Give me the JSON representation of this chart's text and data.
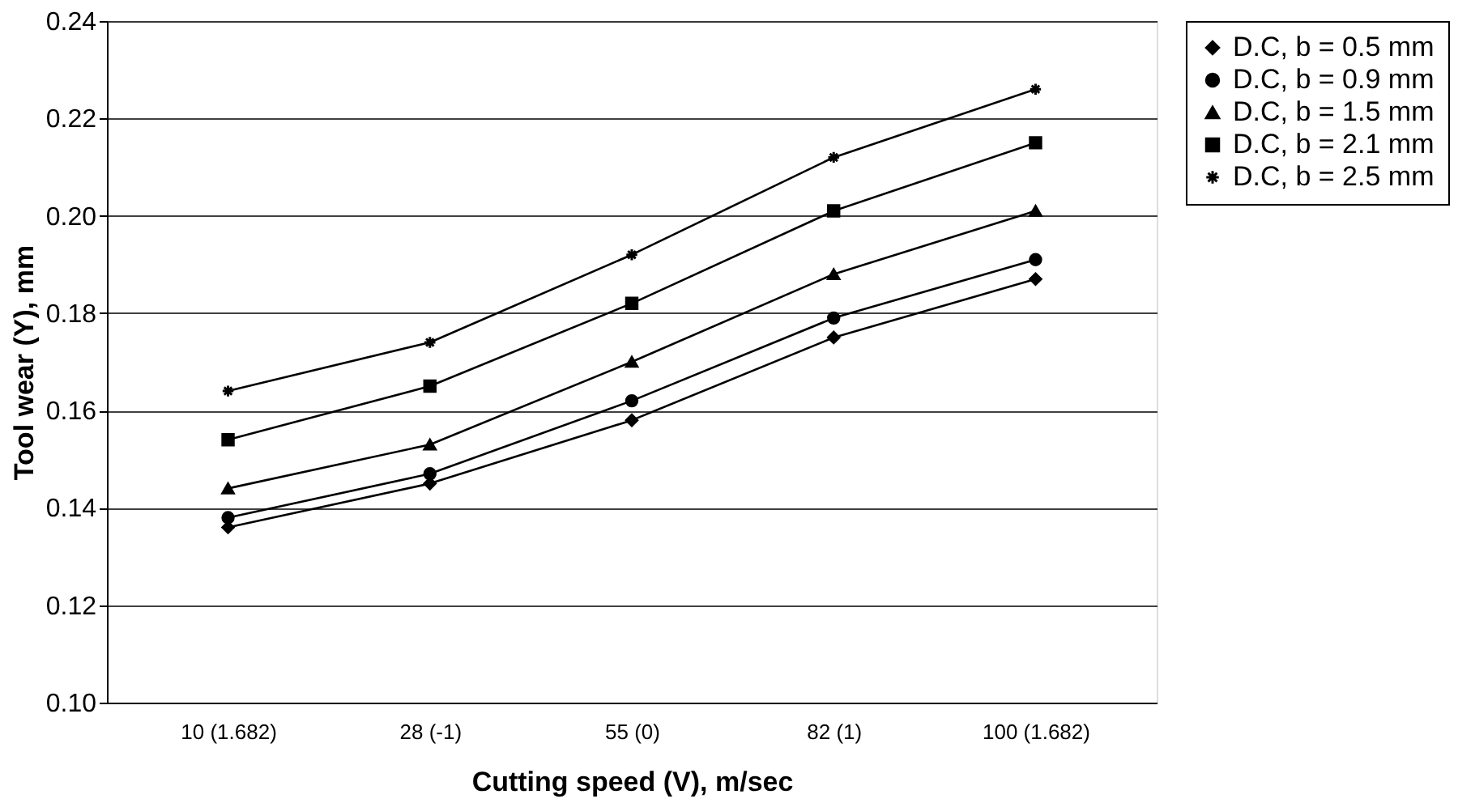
{
  "chart_data": {
    "type": "line",
    "xlabel": "Cutting speed (V), m/sec",
    "ylabel": "Tool wear (Y), mm",
    "categories": [
      "10 (1.682)",
      "28 (-1)",
      "55 (0)",
      "82 (1)",
      "100 (1.682)"
    ],
    "series": [
      {
        "name": "D.C, b = 0.5 mm",
        "color": "#000000",
        "marker": "diamond",
        "values": [
          0.136,
          0.145,
          0.158,
          0.175,
          0.187
        ]
      },
      {
        "name": "D.C, b = 0.9 mm",
        "color": "#000000",
        "marker": "circle",
        "values": [
          0.138,
          0.147,
          0.162,
          0.179,
          0.191
        ]
      },
      {
        "name": "D.C, b = 1.5 mm",
        "color": "#000000",
        "marker": "triangle",
        "values": [
          0.144,
          0.153,
          0.17,
          0.188,
          0.201
        ]
      },
      {
        "name": "D.C, b = 2.1 mm",
        "color": "#000000",
        "marker": "square",
        "values": [
          0.154,
          0.165,
          0.182,
          0.201,
          0.215
        ]
      },
      {
        "name": "D.C, b = 2.5 mm",
        "color": "#000000",
        "marker": "cross",
        "values": [
          0.164,
          0.174,
          0.192,
          0.212,
          0.226
        ]
      }
    ],
    "ylim": [
      0.1,
      0.24
    ],
    "yticks": [
      {
        "value": 0.1,
        "label": "0.10"
      },
      {
        "value": 0.12,
        "label": "0.12"
      },
      {
        "value": 0.14,
        "label": "0.14"
      },
      {
        "value": 0.16,
        "label": "0.16"
      },
      {
        "value": 0.18,
        "label": "0.18"
      },
      {
        "value": 0.2,
        "label": "0.20"
      },
      {
        "value": 0.22,
        "label": "0.22"
      },
      {
        "value": 0.24,
        "label": "0.24"
      }
    ],
    "grid": "y",
    "legend": "right",
    "line_style": "solid"
  }
}
